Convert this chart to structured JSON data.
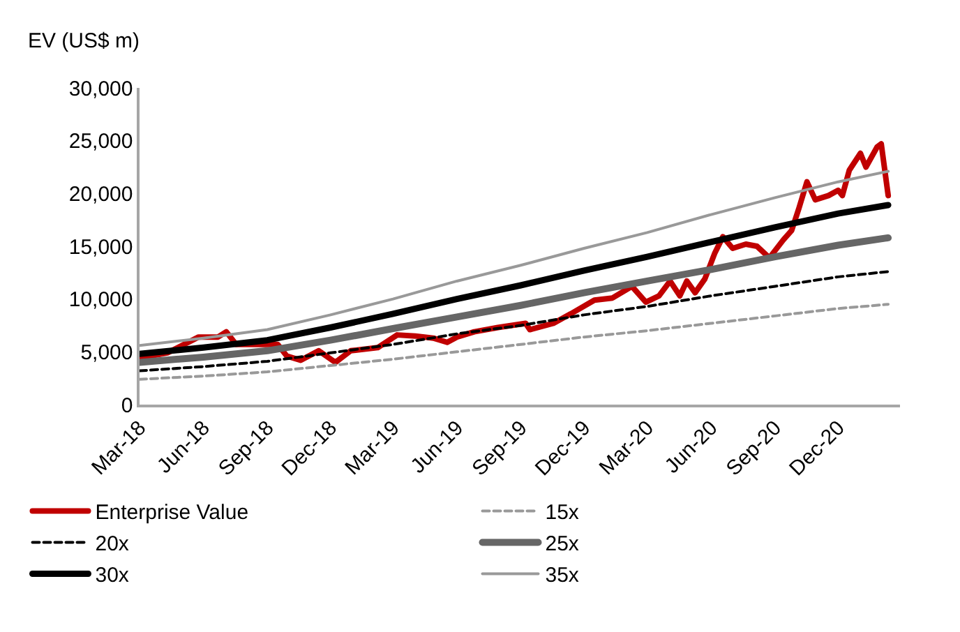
{
  "chart_data": {
    "type": "line",
    "ylabel": "EV (US$ m)",
    "ylim": [
      0,
      30000
    ],
    "yticks": [
      {
        "value": 0,
        "label": "0"
      },
      {
        "value": 5000,
        "label": "5,000"
      },
      {
        "value": 10000,
        "label": "10,000"
      },
      {
        "value": 15000,
        "label": "15,000"
      },
      {
        "value": 20000,
        "label": "20,000"
      },
      {
        "value": 25000,
        "label": "25,000"
      },
      {
        "value": 30000,
        "label": "30,000"
      }
    ],
    "xlim": [
      "2018-03-01",
      "2021-02-28"
    ],
    "xticks": [
      {
        "value": "2018-03-01",
        "label": "Mar-18"
      },
      {
        "value": "2018-06-01",
        "label": "Jun-18"
      },
      {
        "value": "2018-09-01",
        "label": "Sep-18"
      },
      {
        "value": "2018-12-01",
        "label": "Dec-18"
      },
      {
        "value": "2019-03-01",
        "label": "Mar-19"
      },
      {
        "value": "2019-06-01",
        "label": "Jun-19"
      },
      {
        "value": "2019-09-01",
        "label": "Sep-19"
      },
      {
        "value": "2019-12-01",
        "label": "Dec-19"
      },
      {
        "value": "2020-03-01",
        "label": "Mar-20"
      },
      {
        "value": "2020-06-01",
        "label": "Jun-20"
      },
      {
        "value": "2020-09-01",
        "label": "Sep-20"
      },
      {
        "value": "2020-12-01",
        "label": "Dec-20"
      }
    ],
    "grid": false,
    "legend": "bottom",
    "marker": "none",
    "series": [
      {
        "name": "Enterprise Value",
        "color": "#c00000",
        "line_style": "solid",
        "x": [
          "2018-03-01",
          "2018-04-10",
          "2018-05-25",
          "2018-06-22",
          "2018-07-04",
          "2018-07-18",
          "2018-08-21",
          "2018-09-16",
          "2018-09-29",
          "2018-10-19",
          "2018-11-14",
          "2018-12-08",
          "2018-12-30",
          "2019-02-07",
          "2019-03-07",
          "2019-04-02",
          "2019-04-28",
          "2019-05-18",
          "2019-06-01",
          "2019-06-26",
          "2019-07-30",
          "2019-09-08",
          "2019-09-14",
          "2019-10-18",
          "2019-11-12",
          "2019-12-16",
          "2020-01-11",
          "2020-02-08",
          "2020-02-28",
          "2020-03-18",
          "2020-04-03",
          "2020-04-17",
          "2020-04-27",
          "2020-05-09",
          "2020-05-23",
          "2020-06-06",
          "2020-06-18",
          "2020-07-02",
          "2020-07-21",
          "2020-08-06",
          "2020-08-24",
          "2020-09-13",
          "2020-09-25",
          "2020-10-05",
          "2020-10-17",
          "2020-10-29",
          "2020-11-17",
          "2020-12-01",
          "2020-12-07",
          "2020-12-17",
          "2021-01-02",
          "2021-01-10",
          "2021-01-26",
          "2021-02-01",
          "2021-02-11"
        ],
        "values": [
          4400,
          4900,
          6400,
          6400,
          6900,
          5700,
          5700,
          5700,
          4600,
          4200,
          5100,
          4000,
          5100,
          5400,
          6600,
          6500,
          6300,
          5900,
          6400,
          6900,
          7300,
          7700,
          7100,
          7700,
          8600,
          9900,
          10100,
          11200,
          9700,
          10300,
          11700,
          10300,
          11700,
          10600,
          11900,
          14300,
          15900,
          14800,
          15200,
          15000,
          13900,
          15600,
          16500,
          18500,
          21100,
          19400,
          19800,
          20300,
          19800,
          22200,
          23800,
          22500,
          24400,
          24700,
          19800
        ]
      },
      {
        "name": "15x",
        "color": "#999999",
        "line_style": "dashed",
        "values": [
          2400,
          2700,
          3100,
          3700,
          4300,
          5000,
          5700,
          6400,
          7000,
          7700,
          8400,
          9100,
          9500
        ]
      },
      {
        "name": "20x",
        "color": "#000000",
        "line_style": "dashed",
        "values": [
          3200,
          3600,
          4100,
          4900,
          5700,
          6700,
          7500,
          8500,
          9300,
          10300,
          11200,
          12100,
          12600
        ]
      },
      {
        "name": "25x",
        "color": "#666666",
        "line_style": "solid",
        "values": [
          4000,
          4500,
          5100,
          6100,
          7200,
          8300,
          9400,
          10600,
          11700,
          12800,
          14000,
          15100,
          15800
        ]
      },
      {
        "name": "30x",
        "color": "#000000",
        "line_style": "solid",
        "values": [
          4800,
          5400,
          6100,
          7300,
          8600,
          10000,
          11300,
          12700,
          14000,
          15400,
          16800,
          18100,
          18900
        ]
      },
      {
        "name": "35x",
        "color": "#999999",
        "line_style": "solid",
        "values": [
          5600,
          6300,
          7100,
          8500,
          10000,
          11700,
          13200,
          14800,
          16300,
          18000,
          19600,
          21100,
          22100
        ]
      }
    ],
    "x": [
      "2018-03-01",
      "2018-06-01",
      "2018-09-01",
      "2018-12-01",
      "2019-03-01",
      "2019-06-01",
      "2019-09-01",
      "2019-12-01",
      "2020-03-01",
      "2020-06-01",
      "2020-09-01",
      "2020-12-01",
      "2021-02-11"
    ]
  }
}
